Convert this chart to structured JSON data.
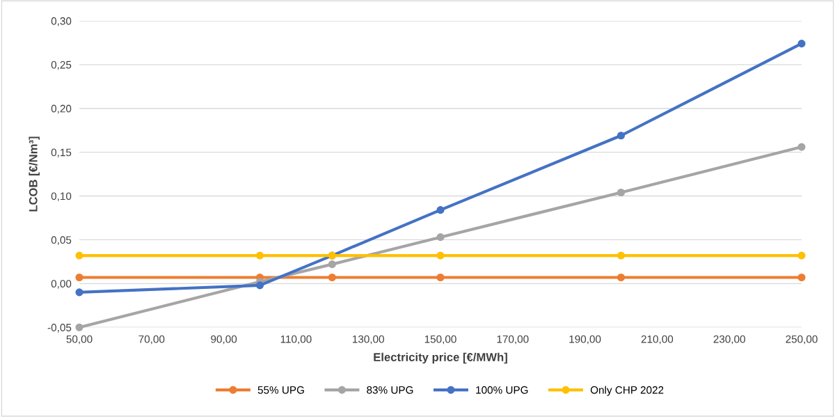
{
  "chart_data": {
    "type": "line",
    "xlabel": "Electricity price [€/MWh]",
    "ylabel": "LCOB [€/Nm³]",
    "x": [
      50,
      100,
      120,
      150,
      200,
      250
    ],
    "series": [
      {
        "name": "55% UPG",
        "color": "#ed7d31",
        "values": [
          0.007,
          0.007,
          0.007,
          0.007,
          0.007,
          0.007
        ]
      },
      {
        "name": "83% UPG",
        "color": "#a5a5a5",
        "values": [
          -0.05,
          0.002,
          0.022,
          0.053,
          0.104,
          0.156
        ]
      },
      {
        "name": "100% UPG",
        "color": "#4472c4",
        "values": [
          -0.01,
          -0.002,
          0.032,
          0.084,
          0.169,
          0.274
        ]
      },
      {
        "name": "Only CHP 2022",
        "color": "#ffc000",
        "values": [
          0.032,
          0.032,
          0.032,
          0.032,
          0.032,
          0.032
        ]
      }
    ],
    "xlim": [
      50,
      250
    ],
    "xticks": [
      {
        "value": 50,
        "label": "50,00"
      },
      {
        "value": 70,
        "label": "70,00"
      },
      {
        "value": 90,
        "label": "90,00"
      },
      {
        "value": 110,
        "label": "110,00"
      },
      {
        "value": 130,
        "label": "130,00"
      },
      {
        "value": 150,
        "label": "150,00"
      },
      {
        "value": 170,
        "label": "170,00"
      },
      {
        "value": 190,
        "label": "190,00"
      },
      {
        "value": 210,
        "label": "210,00"
      },
      {
        "value": 230,
        "label": "230,00"
      },
      {
        "value": 250,
        "label": "250,00"
      }
    ],
    "ylim": [
      -0.05,
      0.3
    ],
    "yticks": [
      {
        "value": -0.05,
        "label": "-0,05"
      },
      {
        "value": 0,
        "label": "0,00"
      },
      {
        "value": 0.05,
        "label": "0,05"
      },
      {
        "value": 0.1,
        "label": "0,10"
      },
      {
        "value": 0.15,
        "label": "0,15"
      },
      {
        "value": 0.2,
        "label": "0,20"
      },
      {
        "value": 0.25,
        "label": "0,25"
      },
      {
        "value": 0.3,
        "label": "0,30"
      }
    ],
    "grid": "y",
    "legend": "bottom",
    "marker": "circle",
    "line_style": "solid"
  }
}
